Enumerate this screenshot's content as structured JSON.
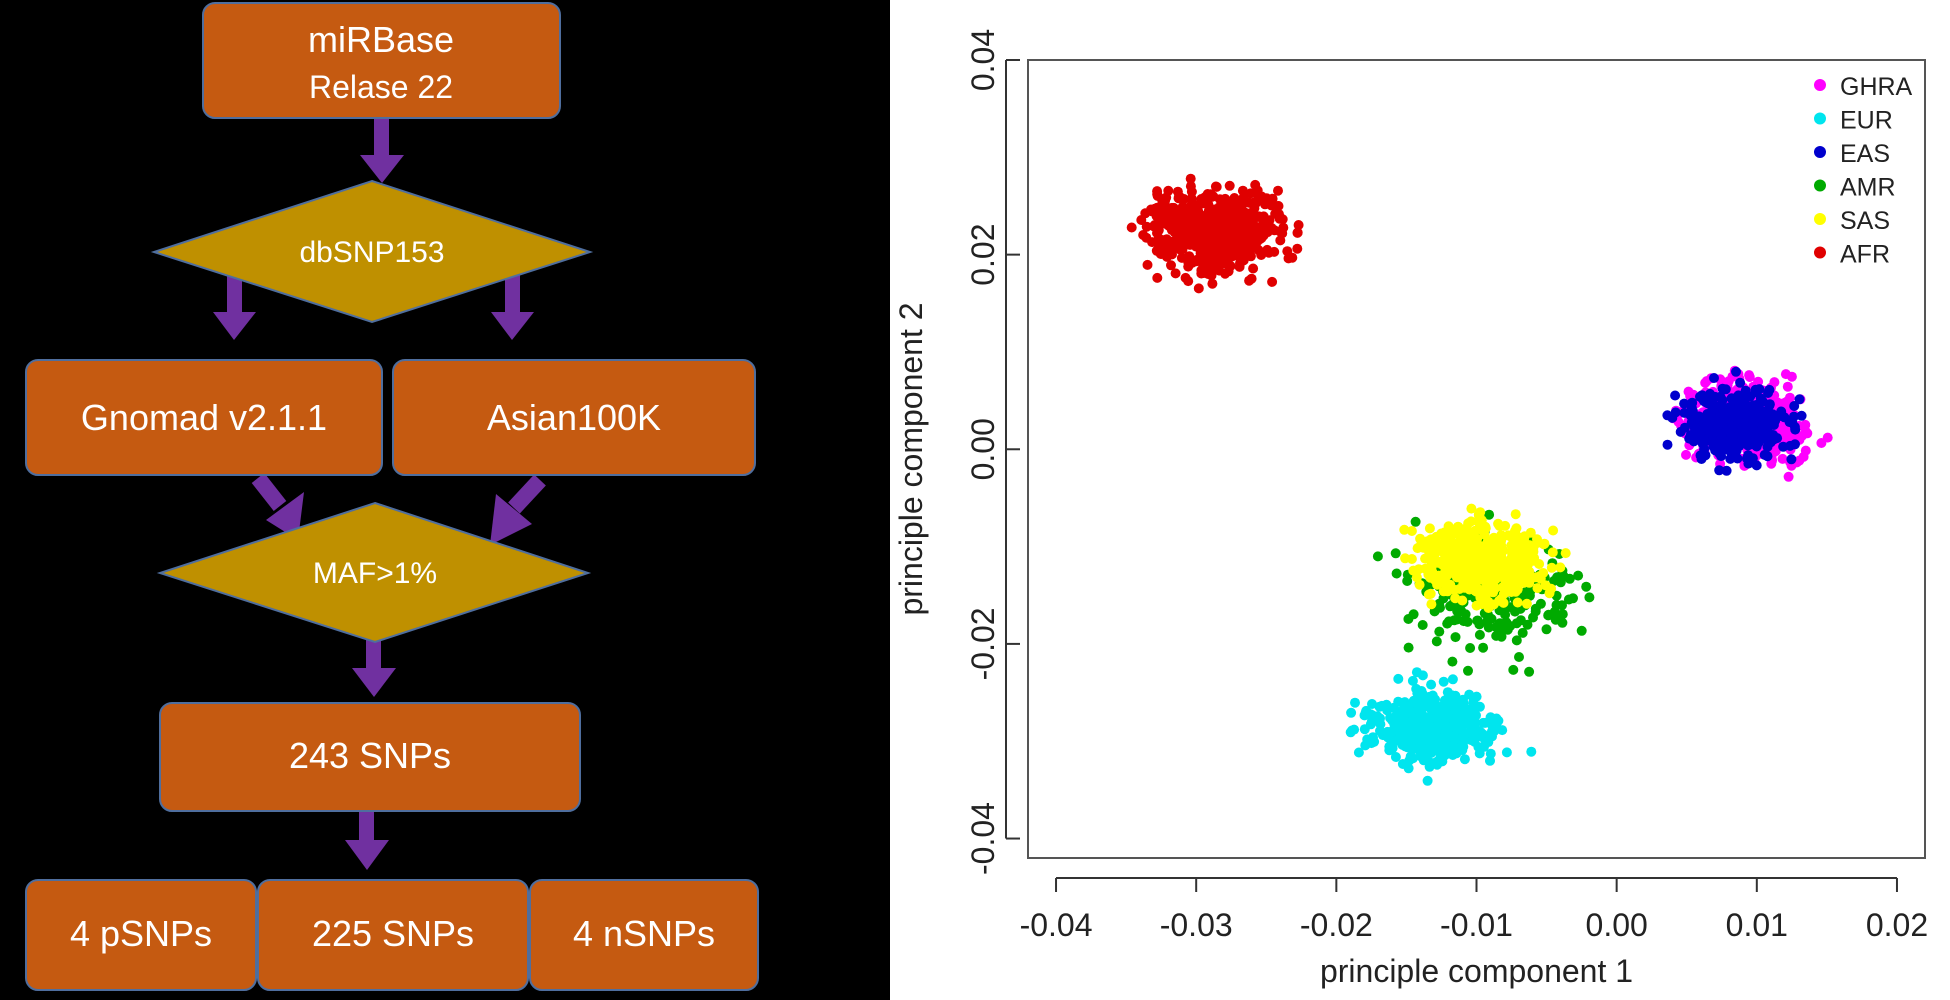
{
  "flowchart": {
    "nodes": {
      "mirbase_line1": "miRBase",
      "mirbase_line2": "Relase 22",
      "dbsnp": "dbSNP153",
      "gnomad": "Gnomad v2.1.1",
      "asian": "Asian100K",
      "maf": "MAF>1%",
      "snps243": "243 SNPs",
      "psnps": "4 pSNPs",
      "snps225": "225 SNPs",
      "nsnps": "4 nSNPs"
    },
    "colors": {
      "box": "#C55A11",
      "diamond": "#BF9000",
      "arrow": "#7030A0",
      "border": "#4F6E9E"
    }
  },
  "chart_data": {
    "type": "scatter",
    "title": "",
    "xlabel": "principle component 1",
    "ylabel": "principle component 2",
    "xlim": [
      -0.042,
      0.022
    ],
    "ylim": [
      -0.042,
      0.04
    ],
    "xticks": [
      "-0.04",
      "-0.03",
      "-0.02",
      "-0.01",
      "0.00",
      "0.01",
      "0.02"
    ],
    "yticks": [
      "-0.04",
      "-0.02",
      "0.00",
      "0.02",
      "0.04"
    ],
    "legend_position": "top-right",
    "grid": false,
    "series": [
      {
        "name": "GHRA",
        "color": "#FF00FF",
        "center": [
          0.009,
          0.003
        ],
        "spread": [
          0.0062,
          0.0052
        ],
        "count": 520
      },
      {
        "name": "EUR",
        "color": "#00E5EE",
        "center": [
          -0.013,
          -0.0285
        ],
        "spread": [
          0.0062,
          0.0052
        ],
        "count": 440
      },
      {
        "name": "EAS",
        "color": "#0000CD",
        "center": [
          0.0085,
          0.0025
        ],
        "spread": [
          0.0052,
          0.0048
        ],
        "count": 380
      },
      {
        "name": "AMR",
        "color": "#00AA00",
        "center": [
          -0.0085,
          -0.015
        ],
        "spread": [
          0.0085,
          0.0085
        ],
        "count": 220
      },
      {
        "name": "SAS",
        "color": "#FFFF00",
        "center": [
          -0.0095,
          -0.0115
        ],
        "spread": [
          0.0062,
          0.0057
        ],
        "count": 440
      },
      {
        "name": "AFR",
        "color": "#E00000",
        "center": [
          -0.0285,
          0.0225
        ],
        "spread": [
          0.0064,
          0.0062
        ],
        "count": 600
      }
    ]
  }
}
